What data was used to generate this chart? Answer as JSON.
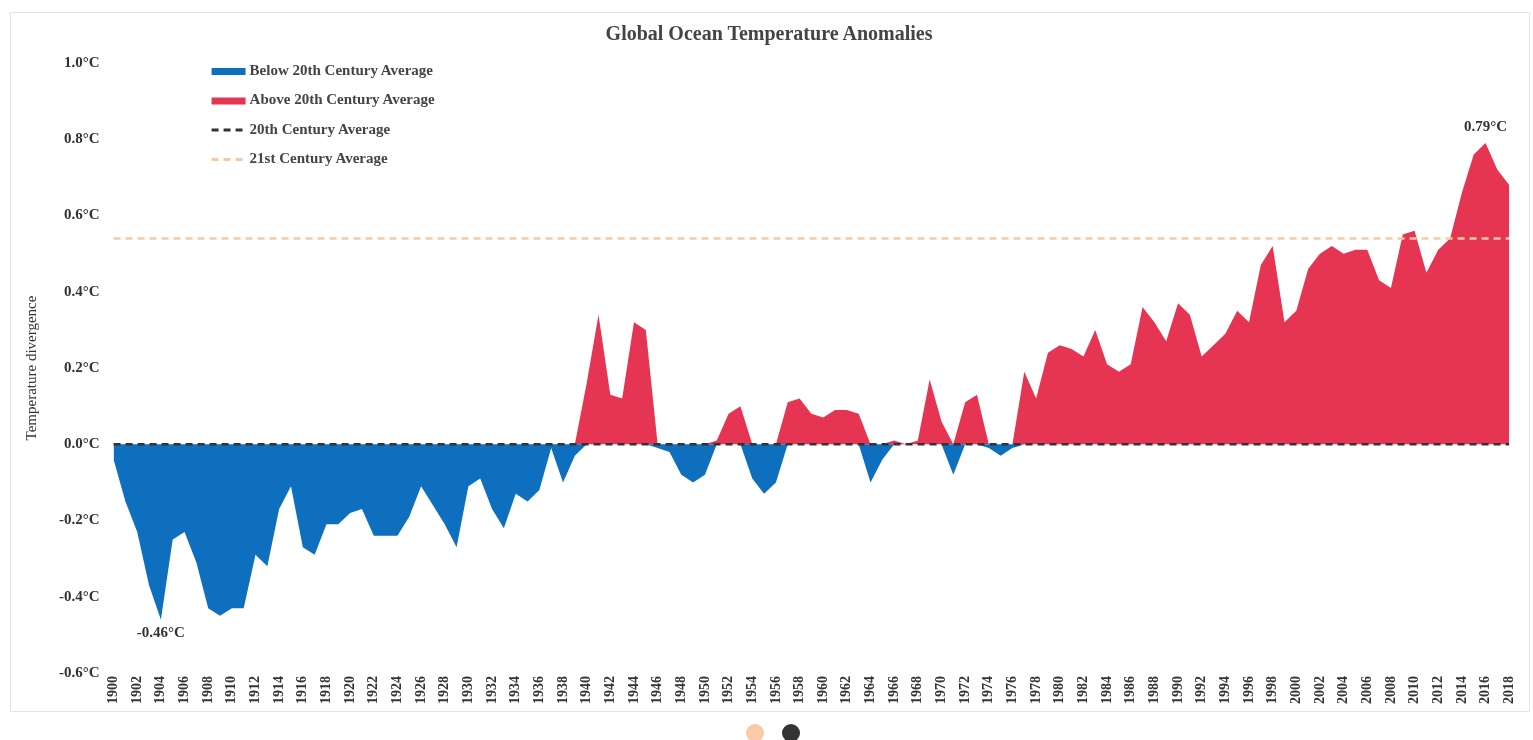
{
  "chart_data": {
    "type": "area",
    "title": "Global Ocean Temperature Anomalies",
    "ylabel": "Temperature divergence",
    "x": [
      1900,
      1901,
      1902,
      1903,
      1904,
      1905,
      1906,
      1907,
      1908,
      1909,
      1910,
      1911,
      1912,
      1913,
      1914,
      1915,
      1916,
      1917,
      1918,
      1919,
      1920,
      1921,
      1922,
      1923,
      1924,
      1925,
      1926,
      1927,
      1928,
      1929,
      1930,
      1931,
      1932,
      1933,
      1934,
      1935,
      1936,
      1937,
      1938,
      1939,
      1940,
      1941,
      1942,
      1943,
      1944,
      1945,
      1946,
      1947,
      1948,
      1949,
      1950,
      1951,
      1952,
      1953,
      1954,
      1955,
      1956,
      1957,
      1958,
      1959,
      1960,
      1961,
      1962,
      1963,
      1964,
      1965,
      1966,
      1967,
      1968,
      1969,
      1970,
      1971,
      1972,
      1973,
      1974,
      1975,
      1976,
      1977,
      1978,
      1979,
      1980,
      1981,
      1982,
      1983,
      1984,
      1985,
      1986,
      1987,
      1988,
      1989,
      1990,
      1991,
      1992,
      1993,
      1994,
      1995,
      1996,
      1997,
      1998,
      1999,
      2000,
      2001,
      2002,
      2003,
      2004,
      2005,
      2006,
      2007,
      2008,
      2009,
      2010,
      2011,
      2012,
      2013,
      2014,
      2015,
      2016,
      2017,
      2018
    ],
    "series": [
      {
        "name": "Below 20th Century Average",
        "color": "#0f6fbf",
        "values": [
          -0.04,
          -0.15,
          -0.23,
          -0.37,
          -0.46,
          -0.25,
          -0.23,
          -0.31,
          -0.43,
          -0.45,
          -0.43,
          -0.43,
          -0.29,
          -0.32,
          -0.17,
          -0.11,
          -0.27,
          -0.29,
          -0.21,
          -0.21,
          -0.18,
          -0.17,
          -0.24,
          -0.24,
          -0.24,
          -0.19,
          -0.11,
          -0.16,
          -0.21,
          -0.27,
          -0.11,
          -0.09,
          -0.17,
          -0.22,
          -0.13,
          -0.15,
          -0.12,
          -0.01,
          -0.1,
          -0.03,
          0,
          0,
          0,
          0,
          0,
          0,
          -0.01,
          -0.02,
          -0.08,
          -0.1,
          -0.08,
          0,
          0,
          0,
          -0.09,
          -0.13,
          -0.1,
          0,
          0,
          0,
          0,
          0,
          0,
          0,
          -0.1,
          -0.04,
          0,
          0,
          0,
          0,
          0,
          -0.08,
          0,
          0,
          -0.01,
          -0.03,
          -0.01,
          0,
          0,
          0,
          0,
          0,
          0,
          0,
          0,
          0,
          0,
          0,
          0,
          0,
          0,
          0,
          0,
          0,
          0,
          0,
          0,
          0,
          0,
          0,
          0,
          0,
          0,
          0,
          0,
          0,
          0,
          0,
          0,
          0,
          0,
          0,
          0,
          0,
          0,
          0,
          0,
          0,
          0
        ]
      },
      {
        "name": "Above 20th Century Average",
        "color": "#e63552",
        "values": [
          0,
          0,
          0,
          0,
          0,
          0,
          0,
          0,
          0,
          0,
          0,
          0,
          0,
          0,
          0,
          0,
          0,
          0,
          0,
          0,
          0,
          0,
          0,
          0,
          0,
          0,
          0,
          0,
          0,
          0,
          0,
          0,
          0,
          0,
          0,
          0,
          0,
          0,
          0,
          0,
          0.16,
          0.34,
          0.13,
          0.12,
          0.32,
          0.3,
          0,
          0,
          0,
          0,
          0,
          0.01,
          0.08,
          0.1,
          0,
          0,
          0,
          0.11,
          0.12,
          0.08,
          0.07,
          0.09,
          0.09,
          0.08,
          0,
          0,
          0.01,
          0,
          0.01,
          0.17,
          0.06,
          0,
          0.11,
          0.13,
          0,
          0,
          0,
          0.19,
          0.12,
          0.24,
          0.26,
          0.25,
          0.23,
          0.3,
          0.21,
          0.19,
          0.21,
          0.36,
          0.32,
          0.27,
          0.37,
          0.34,
          0.23,
          0.26,
          0.29,
          0.35,
          0.32,
          0.47,
          0.52,
          0.32,
          0.35,
          0.46,
          0.5,
          0.52,
          0.5,
          0.51,
          0.51,
          0.43,
          0.41,
          0.55,
          0.56,
          0.45,
          0.51,
          0.54,
          0.66,
          0.76,
          0.79,
          0.72,
          0.68
        ]
      }
    ],
    "ref_lines": [
      {
        "axis": "y",
        "value": 0,
        "label": "20th Century Average",
        "color": "#333333",
        "line_style": "dashed"
      },
      {
        "axis": "y",
        "value": 0.54,
        "label": "21st Century Average",
        "color": "#f8c9a0",
        "line_style": "dashed"
      }
    ],
    "annotations": [
      {
        "text": "-0.46°C",
        "x": 1904,
        "y": -0.46
      },
      {
        "text": "0.79°C",
        "x": 2016,
        "y": 0.79
      }
    ],
    "xlim": [
      1900,
      2018
    ],
    "xticks": [
      1900,
      1902,
      1904,
      1906,
      1908,
      1910,
      1912,
      1914,
      1916,
      1918,
      1920,
      1922,
      1924,
      1926,
      1928,
      1930,
      1932,
      1934,
      1936,
      1938,
      1940,
      1942,
      1944,
      1946,
      1948,
      1950,
      1952,
      1954,
      1956,
      1958,
      1960,
      1962,
      1964,
      1966,
      1968,
      1970,
      1972,
      1974,
      1976,
      1978,
      1980,
      1982,
      1984,
      1986,
      1988,
      1990,
      1992,
      1994,
      1996,
      1998,
      2000,
      2002,
      2004,
      2006,
      2008,
      2010,
      2012,
      2014,
      2016,
      2018
    ],
    "ylim": [
      -0.6,
      1.0
    ],
    "yticks": [
      {
        "value": -0.6,
        "label": "-0.6°C"
      },
      {
        "value": -0.4,
        "label": "-0.4°C"
      },
      {
        "value": -0.2,
        "label": "-0.2°C"
      },
      {
        "value": 0,
        "label": "0.0°C"
      },
      {
        "value": 0.2,
        "label": "0.2°C"
      },
      {
        "value": 0.4,
        "label": "0.4°C"
      },
      {
        "value": 0.6,
        "label": "0.6°C"
      },
      {
        "value": 0.8,
        "label": "0.8°C"
      },
      {
        "value": 1.0,
        "label": "1.0°C"
      }
    ],
    "grid": false,
    "marker": "none",
    "legend": "top left"
  }
}
